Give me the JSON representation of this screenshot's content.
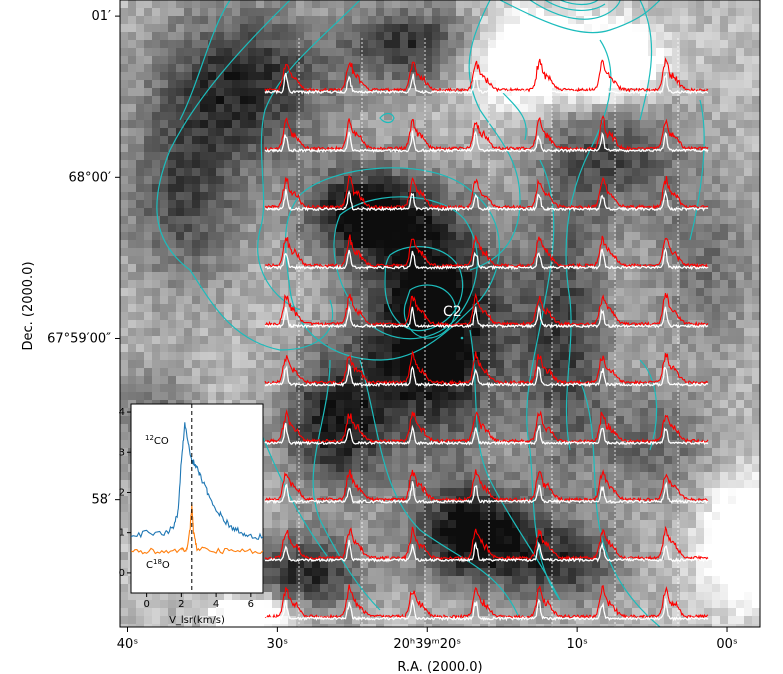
{
  "chart_data": {
    "type": "map",
    "xlabel": "R.A. (2000.0)",
    "ylabel": "Dec. (2000.0)",
    "x_ticks": [
      {
        "label": "40ˢ",
        "ra_sec": 40
      },
      {
        "label": "30ˢ",
        "ra_sec": 30
      },
      {
        "label": "20ʰ39ᵐ20ˢ",
        "ra_sec": 20
      },
      {
        "label": "10ˢ",
        "ra_sec": 10
      },
      {
        "label": "00ˢ",
        "ra_sec": 0
      }
    ],
    "y_ticks": [
      {
        "label": "01′",
        "dec_arcmin": 3
      },
      {
        "label": "68°00′",
        "dec_arcmin": 2
      },
      {
        "label": "67°59′00″",
        "dec_arcmin": 1
      },
      {
        "label": "58′",
        "dec_arcmin": 0
      }
    ],
    "x_range_ra_sec": [
      40.5,
      -2.2
    ],
    "y_range_dec_arcmin": [
      -0.79,
      3.1
    ],
    "source_label": "C2",
    "background": "grayscale intensity map (darker = higher)",
    "contour_color": "#1cbcbc",
    "spectra_grid": {
      "rows": 10,
      "cols": 7,
      "red_line": "12CO spectra",
      "white_line": "C18O spectra",
      "red_color": "#ff0000",
      "white_color": "#ffffff",
      "dashed_vertical_lines": "white"
    },
    "inset": {
      "xlabel": "V_lsr(km/s)",
      "x_ticks": [
        0,
        2,
        4,
        6
      ],
      "y_ticks": [
        0,
        1,
        2,
        3,
        4
      ],
      "xlim": [
        -0.9,
        6.7
      ],
      "ylim": [
        -0.5,
        4.2
      ],
      "dashed_line_v": 2.6,
      "series": [
        {
          "name": "¹²CO",
          "color": "#1f77b4",
          "v": [
            -0.9,
            0,
            1,
            1.5,
            1.8,
            2.0,
            2.2,
            2.4,
            2.6,
            2.8,
            3.0,
            3.2,
            3.5,
            4.0,
            4.5,
            5.0,
            5.5,
            6.0,
            6.7
          ],
          "t": [
            0.9,
            1.0,
            1.0,
            1.1,
            1.5,
            2.8,
            3.7,
            3.2,
            2.8,
            2.7,
            2.5,
            2.3,
            2.0,
            1.6,
            1.3,
            1.1,
            1.0,
            0.9,
            0.9
          ]
        },
        {
          "name": "C¹⁸O",
          "color": "#ff7f0e",
          "v": [
            -0.9,
            0,
            1,
            2.0,
            2.3,
            2.5,
            2.6,
            2.7,
            2.9,
            3.5,
            4.5,
            5.5,
            6.7
          ],
          "t": [
            0.55,
            0.55,
            0.55,
            0.55,
            0.6,
            1.1,
            1.7,
            1.0,
            0.6,
            0.55,
            0.55,
            0.55,
            0.55
          ]
        }
      ]
    }
  }
}
